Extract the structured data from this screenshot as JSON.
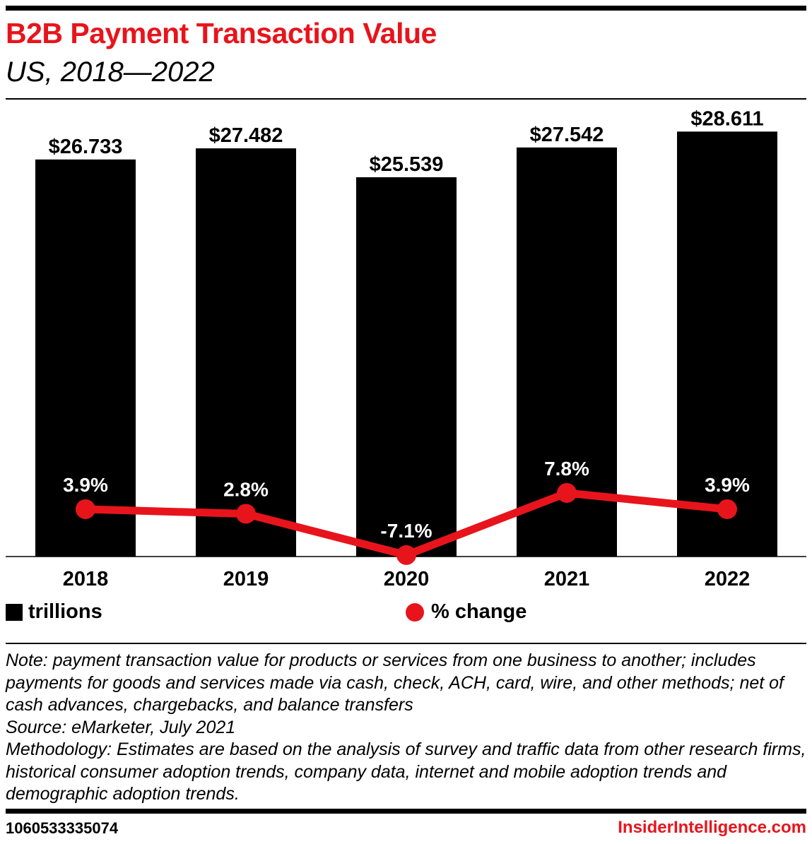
{
  "header": {
    "title": "B2B Payment Transaction Value",
    "subtitle": "US, 2018—2022"
  },
  "chart_data": {
    "type": "bar",
    "categories": [
      "2018",
      "2019",
      "2020",
      "2021",
      "2022"
    ],
    "series": [
      {
        "name": "trillions",
        "type": "bar",
        "values": [
          26.733,
          27.482,
          25.539,
          27.542,
          28.611
        ],
        "labels": [
          "$26.733",
          "$27.482",
          "$25.539",
          "$27.542",
          "$28.611"
        ],
        "color": "#000000"
      },
      {
        "name": "% change",
        "type": "line",
        "values": [
          3.9,
          2.8,
          -7.1,
          7.8,
          3.9
        ],
        "labels": [
          "3.9%",
          "2.8%",
          "-7.1%",
          "7.8%",
          "3.9%"
        ],
        "color": "#e8141c"
      }
    ],
    "legend": {
      "position": "bottom",
      "items": [
        "trillions",
        "% change"
      ]
    },
    "grid": false
  },
  "notes": [
    "Note: payment transaction value for products or services from one business to another; includes payments for goods and services made via cash, check, ACH, card, wire, and other methods; net of cash advances, chargebacks, and balance transfers",
    "Source: eMarketer, July 2021",
    "Methodology: Estimates are based on the analysis of survey and traffic data from other research firms, historical consumer adoption trends, company data, internet and mobile adoption trends and demographic adoption trends."
  ],
  "footer": {
    "id": "1060533335074",
    "brand": "InsiderIntelligence.com"
  }
}
